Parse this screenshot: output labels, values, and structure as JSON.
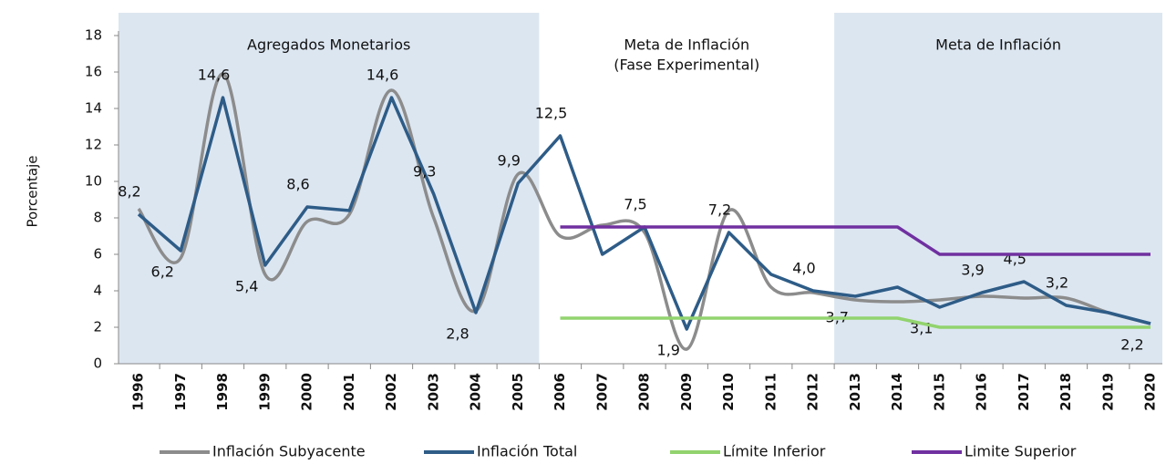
{
  "chart_data": {
    "type": "line",
    "y_label": "Porcentaje",
    "categories": [
      "1996",
      "1997",
      "1998",
      "1999",
      "2000",
      "2001",
      "2002",
      "2003",
      "2004",
      "2005",
      "2006",
      "2007",
      "2008",
      "2009",
      "2010",
      "2011",
      "2012",
      "2013",
      "2014",
      "2015",
      "2016",
      "2017",
      "2018",
      "2019",
      "2020"
    ],
    "regions": [
      {
        "label": [
          "Agregados Monetarios"
        ],
        "start": "1996",
        "end": "2005",
        "shaded": true
      },
      {
        "label": [
          "Meta de Inflación",
          "(Fase Experimental)"
        ],
        "start": "2006",
        "end": "2012",
        "shaded": false
      },
      {
        "label": [
          "Meta de Inflación"
        ],
        "start": "2013",
        "end": "2020",
        "shaded": true
      }
    ],
    "region_color": "#dce6f1",
    "series": [
      {
        "name": "Inflación Subyacente",
        "color": "#8c8c8c",
        "smooth": true,
        "values": [
          8.5,
          5.8,
          15.9,
          4.9,
          7.8,
          8.2,
          15.0,
          8.0,
          2.9,
          10.4,
          7.0,
          7.6,
          7.2,
          0.8,
          8.4,
          4.2,
          3.9,
          3.5,
          3.4,
          3.5,
          3.7,
          3.6,
          3.6,
          2.8,
          2.2
        ]
      },
      {
        "name": "Inflación Total",
        "color": "#2e5c87",
        "smooth": false,
        "values": [
          8.2,
          6.2,
          14.6,
          5.4,
          8.6,
          8.4,
          14.6,
          9.3,
          2.8,
          9.9,
          12.5,
          6.0,
          7.5,
          1.9,
          7.2,
          4.9,
          4.0,
          3.7,
          4.2,
          3.1,
          3.9,
          4.5,
          3.2,
          2.8,
          2.2
        ],
        "value_labels": [
          "8,2",
          "6,2",
          "14,6",
          "5,4",
          "8,6",
          null,
          "14,6",
          "9,3",
          "2,8",
          "9,9",
          "12,5",
          null,
          "7,5",
          "1,9",
          "7,2",
          null,
          "4,0",
          "3,7",
          null,
          "3,1",
          "3,9",
          "4,5",
          "3,2",
          null,
          "2,2"
        ]
      },
      {
        "name": "Límite Inferior",
        "color": "#92d36e",
        "smooth": false,
        "values": [
          null,
          null,
          null,
          null,
          null,
          null,
          null,
          null,
          null,
          null,
          2.5,
          2.5,
          2.5,
          2.5,
          2.5,
          2.5,
          2.5,
          2.5,
          2.5,
          2.0,
          2.0,
          2.0,
          2.0,
          2.0,
          2.0
        ]
      },
      {
        "name": "Limite Superior",
        "color": "#7030a0",
        "smooth": false,
        "values": [
          null,
          null,
          null,
          null,
          null,
          null,
          null,
          null,
          null,
          null,
          7.5,
          7.5,
          7.5,
          7.5,
          7.5,
          7.5,
          7.5,
          7.5,
          7.5,
          6.0,
          6.0,
          6.0,
          6.0,
          6.0,
          6.0
        ]
      }
    ],
    "ylim": [
      0,
      18
    ],
    "yticks": [
      0,
      2,
      4,
      6,
      8,
      10,
      12,
      14,
      16,
      18
    ],
    "grid": false
  }
}
